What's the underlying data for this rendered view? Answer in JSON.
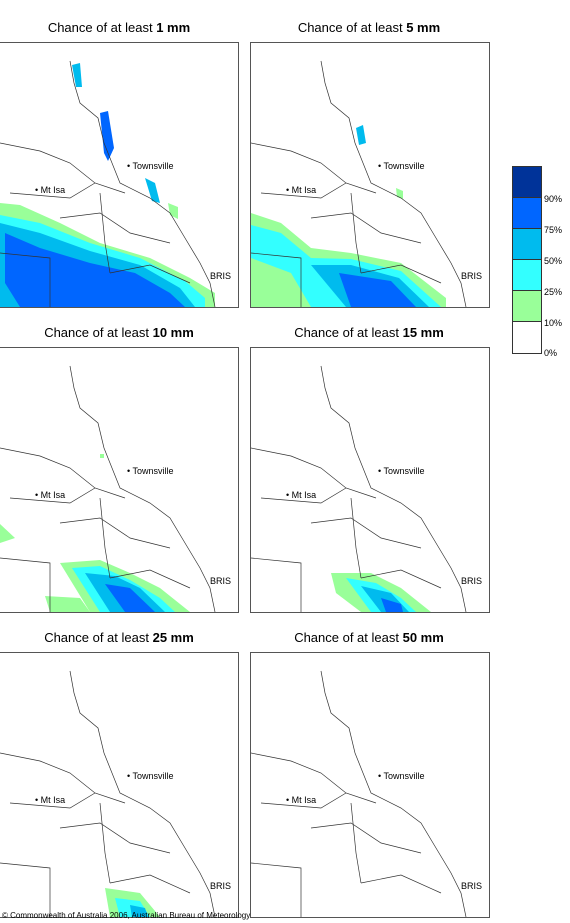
{
  "panels": [
    {
      "title_prefix": "Chance of at least ",
      "amount": "1 mm"
    },
    {
      "title_prefix": "Chance of at least ",
      "amount": "5 mm"
    },
    {
      "title_prefix": "Chance of at least ",
      "amount": "10 mm"
    },
    {
      "title_prefix": "Chance of at least ",
      "amount": "15 mm"
    },
    {
      "title_prefix": "Chance of at least ",
      "amount": "25 mm"
    },
    {
      "title_prefix": "Chance of at least ",
      "amount": "50 mm"
    }
  ],
  "places": {
    "townsville": "Townsville",
    "mt_isa": "Mt Isa",
    "bris": "BRIS"
  },
  "legend": {
    "labels": [
      "90%",
      "75%",
      "50%",
      "25%",
      "10%",
      "0%"
    ],
    "colors": [
      "#003399",
      "#0066ff",
      "#00bbee",
      "#33ffff",
      "#99ff99",
      "#ffffff"
    ]
  },
  "copyright": "© Commonwealth of Australia 2006, Australian Bureau of Meteorology"
}
